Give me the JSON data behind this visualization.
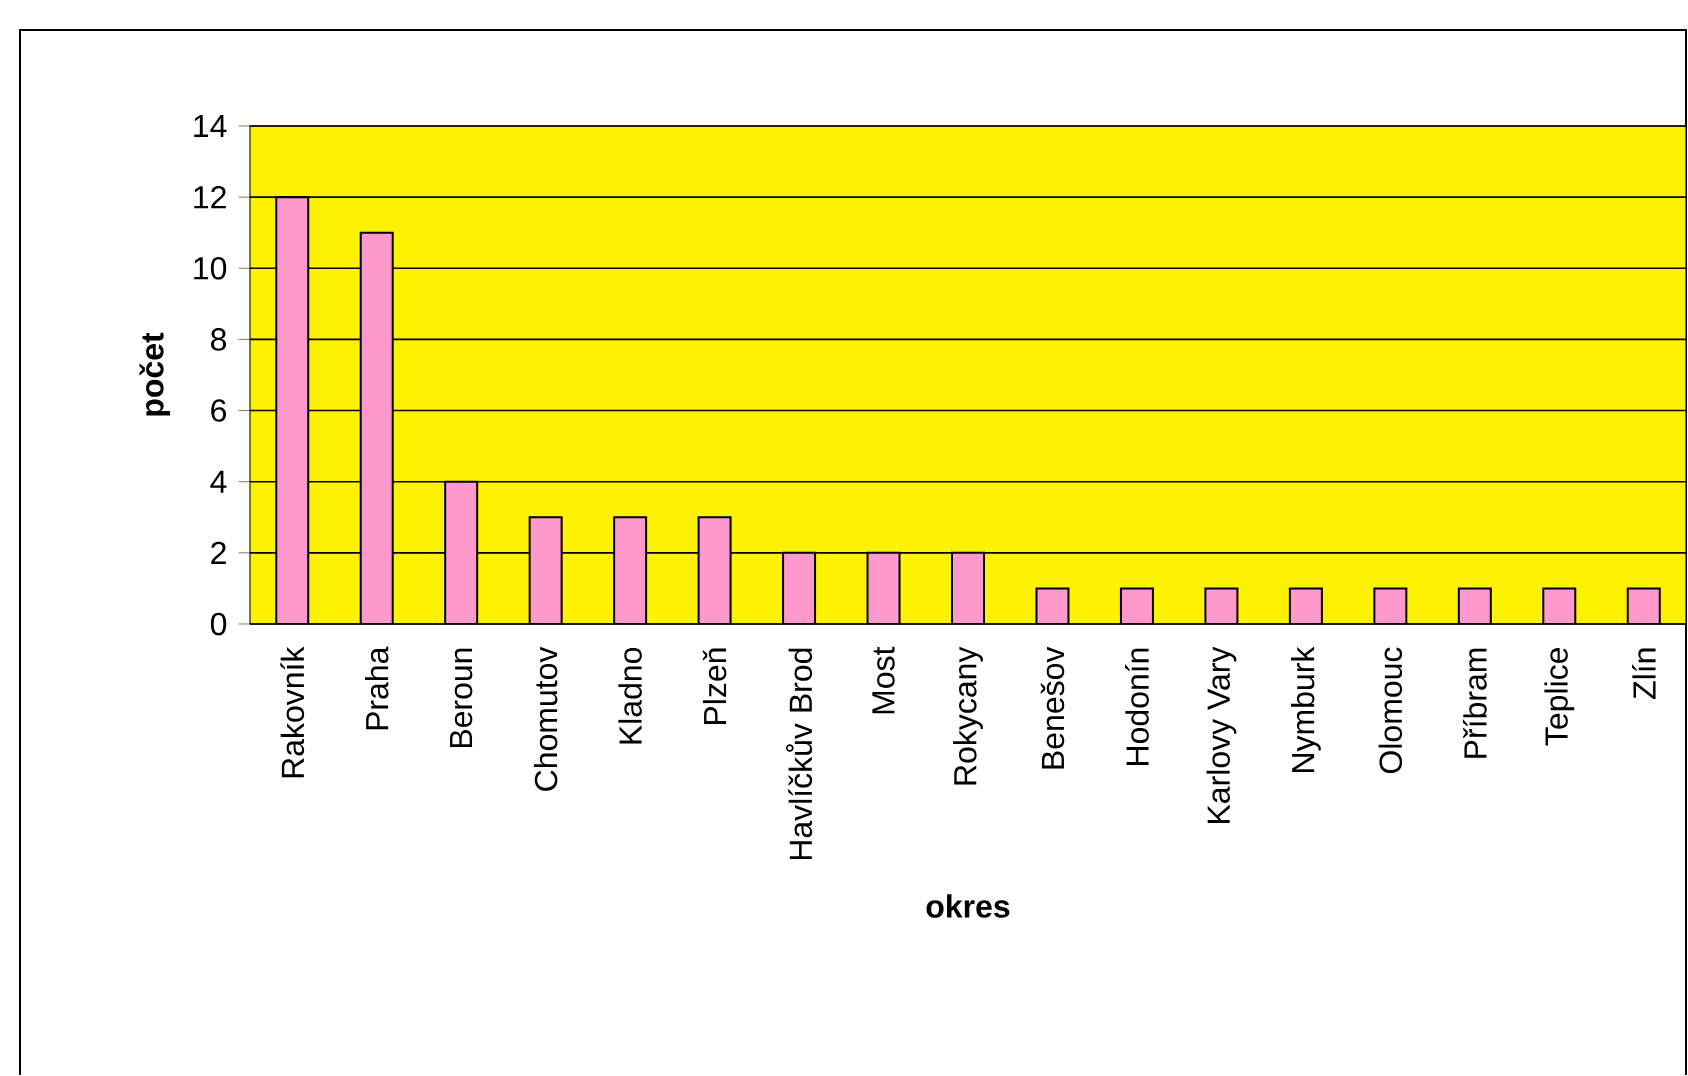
{
  "chart_data": {
    "type": "bar",
    "xlabel": "okres",
    "ylabel": "počet",
    "categories": [
      "Rakovník",
      "Praha",
      "Beroun",
      "Chomutov",
      "Kladno",
      "Plzeň",
      "Havlíčkův Brod",
      "Most",
      "Rokycany",
      "Benešov",
      "Hodonín",
      "Karlovy Vary",
      "Nymburk",
      "Olomouc",
      "Příbram",
      "Teplice",
      "Zlín"
    ],
    "values": [
      12,
      11,
      4,
      3,
      3,
      3,
      2,
      2,
      2,
      1,
      1,
      1,
      1,
      1,
      1,
      1,
      1
    ],
    "color": "#ff99cc",
    "ylim": [
      0,
      14
    ],
    "yticks": [
      0,
      2,
      4,
      6,
      8,
      10,
      12,
      14
    ],
    "grid": "y"
  }
}
